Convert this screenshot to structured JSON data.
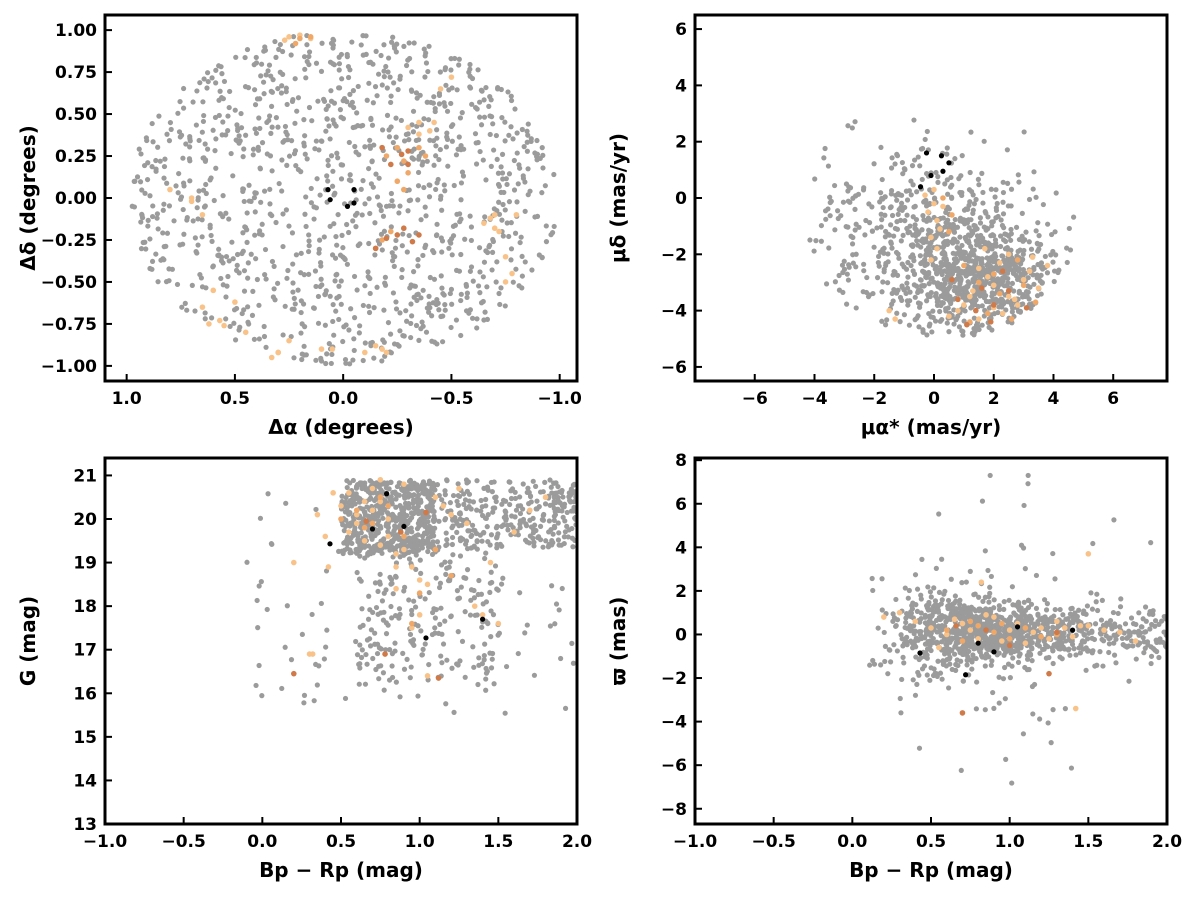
{
  "colors": {
    "field": "#9b9b9b",
    "member_light": "#f8c288",
    "member_mid": "#f0a868",
    "member_dark": "#cf7a48",
    "center": "#000000"
  },
  "chart_data": [
    {
      "type": "scatter",
      "id": "sky",
      "xlabel": "Δα (degrees)",
      "ylabel": "Δδ (degrees)",
      "xlim": [
        1.1,
        -1.08
      ],
      "ylim": [
        -1.09,
        1.09
      ],
      "x_inverted": true,
      "xticks": [
        1.0,
        0.5,
        0.0,
        -0.5,
        -1.0
      ],
      "xtick_labels": [
        "1.0",
        "0.5",
        "0.0",
        "−0.5",
        "−1.0"
      ],
      "yticks": [
        1.0,
        0.75,
        0.5,
        0.25,
        0.0,
        -0.25,
        -0.5,
        -0.75,
        -1.0
      ],
      "ytick_labels": [
        "1.00",
        "0.75",
        "0.50",
        "0.25",
        "0.00",
        "−0.25",
        "−0.50",
        "−0.75",
        "−1.00"
      ],
      "grid": false,
      "field_cloud": {
        "shape": "disk",
        "center": [
          0,
          0
        ],
        "radius": 0.99,
        "n": 1150
      },
      "series": [
        {
          "group": "center",
          "x": [
            -0.05,
            -0.05,
            -0.02,
            0.07,
            0.06
          ],
          "y": [
            0.05,
            -0.03,
            -0.05,
            0.05,
            -0.01
          ]
        },
        {
          "group": "member_light",
          "x": [
            0.2,
            0.25,
            0.27,
            0.5,
            0.55,
            0.57,
            0.6,
            0.65,
            0.8,
            -0.7,
            -0.72,
            -0.75,
            -0.78,
            -0.75,
            -0.8,
            -0.65,
            -0.5,
            -0.45,
            -0.35,
            -0.3,
            -0.2,
            -0.15,
            -0.1,
            0.05,
            0.1,
            0.15,
            0.25,
            0.3,
            -0.35,
            -0.4,
            -0.42,
            -0.68,
            -0.7,
            0.7,
            0.7,
            0.65,
            0.3,
            0.33,
            0.45,
            0.62,
            -0.18
          ],
          "y": [
            0.97,
            0.96,
            0.94,
            -0.62,
            -0.76,
            -0.73,
            -0.55,
            -0.65,
            0.05,
            -0.1,
            -0.2,
            -0.35,
            -0.45,
            -0.5,
            -0.1,
            -0.15,
            0.72,
            0.65,
            0.38,
            0.42,
            -0.92,
            -0.88,
            -0.92,
            -0.9,
            -0.9,
            0.95,
            -0.85,
            -0.92,
            0.45,
            0.4,
            0.45,
            -0.12,
            -0.18,
            -0.02,
            -0.0,
            -0.1,
            -0.92,
            -0.95,
            -0.8,
            -0.75,
            -0.9
          ]
        },
        {
          "group": "member_mid",
          "x": [
            -0.2,
            -0.25,
            -0.28,
            -0.3,
            -0.22,
            -0.18,
            -0.15,
            -0.35,
            -0.38,
            -0.25,
            -0.28,
            0.15,
            0.2,
            0.22
          ],
          "y": [
            0.25,
            0.3,
            0.22,
            0.15,
            -0.2,
            -0.25,
            -0.3,
            0.3,
            0.25,
            0.1,
            0.05,
            0.96,
            0.95,
            0.92
          ]
        },
        {
          "group": "member_dark",
          "x": [
            -0.18,
            -0.22,
            -0.27,
            -0.3,
            -0.2,
            -0.25,
            -0.28,
            -0.15,
            -0.3,
            -0.32,
            -0.35
          ],
          "y": [
            0.3,
            0.2,
            0.26,
            0.28,
            -0.24,
            -0.22,
            -0.18,
            -0.3,
            0.2,
            -0.26,
            -0.22
          ]
        }
      ]
    },
    {
      "type": "scatter",
      "id": "pm",
      "xlabel": "μα* (mas/yr)",
      "ylabel": "μδ (mas/yr)",
      "xlim": [
        -8,
        7.8
      ],
      "ylim": [
        -6.5,
        6.5
      ],
      "xticks": [
        -6,
        -4,
        -2,
        0,
        2,
        4,
        6
      ],
      "xtick_labels": [
        "−6",
        "−4",
        "−2",
        "0",
        "2",
        "4",
        "6"
      ],
      "yticks": [
        -6,
        -4,
        -2,
        0,
        2,
        4,
        6
      ],
      "ytick_labels": [
        "−6",
        "−4",
        "−2",
        "0",
        "2",
        "4",
        "6"
      ],
      "grid": false,
      "field_cloud": {
        "shape": "pm_blob",
        "center": [
          1.5,
          -2.5
        ],
        "n": 1150
      },
      "series": [
        {
          "group": "center",
          "x": [
            -0.25,
            0.25,
            0.5,
            -0.1,
            0.3,
            -0.45
          ],
          "y": [
            1.6,
            1.5,
            1.25,
            0.8,
            0.95,
            0.4
          ]
        },
        {
          "group": "member_light",
          "x": [
            0.0,
            -0.2,
            0.1,
            0.2,
            -0.1,
            0.0,
            -0.3,
            0.3,
            0.1,
            -0.1,
            1.5,
            1.8,
            2.0,
            2.2,
            2.5,
            2.8,
            3.0,
            3.2,
            3.5,
            3.8,
            1.2,
            1.0,
            0.8,
            0.5,
            1.5,
            2.0,
            2.5,
            1.7,
            2.3,
            1.3,
            2.7,
            3.3,
            -1.5,
            -1.3
          ],
          "y": [
            -0.2,
            -0.5,
            -0.8,
            -1.1,
            -1.4,
            0.3,
            0.1,
            -0.3,
            -1.8,
            -2.2,
            -2.5,
            -2.8,
            -3.1,
            -2.3,
            -3.5,
            -3.8,
            -2.9,
            -2.6,
            -3.2,
            -2.4,
            -3.5,
            -3.8,
            -4.0,
            -4.2,
            -4.3,
            -3.9,
            -2.0,
            -1.8,
            -4.1,
            -3.3,
            -3.6,
            -2.1,
            -4.0,
            -4.3
          ]
        },
        {
          "group": "member_mid",
          "x": [
            0.5,
            1.0,
            1.5,
            1.8,
            2.2,
            2.6,
            3.0,
            3.4,
            1.2,
            2.0,
            0.3,
            0.6,
            2.8
          ],
          "y": [
            -1.2,
            -2.4,
            -3.0,
            -4.1,
            -3.4,
            -4.3,
            -3.1,
            -3.7,
            -4.4,
            -2.7,
            0.0,
            -0.6,
            -2.2
          ]
        },
        {
          "group": "member_dark",
          "x": [
            0.8,
            1.4,
            2.0,
            2.5,
            1.1,
            1.9,
            0.6,
            2.3,
            3.1,
            1.6
          ],
          "y": [
            -3.6,
            -4.0,
            -3.8,
            -3.3,
            -4.5,
            -4.4,
            -2.9,
            -2.6,
            -3.9,
            -3.2
          ]
        }
      ]
    },
    {
      "type": "scatter",
      "id": "cmd",
      "xlabel": "Bp − Rp (mag)",
      "ylabel": "G (mag)",
      "xlim": [
        -1.0,
        2.0
      ],
      "ylim": [
        13.0,
        21.4
      ],
      "y_inverted": false,
      "xticks": [
        -1.0,
        -0.5,
        0.0,
        0.5,
        1.0,
        1.5,
        2.0
      ],
      "xtick_labels": [
        "−1.0",
        "−0.5",
        "0.0",
        "0.5",
        "1.0",
        "1.5",
        "2.0"
      ],
      "yticks": [
        13,
        14,
        15,
        16,
        17,
        18,
        19,
        20,
        21
      ],
      "ytick_labels": [
        "13",
        "14",
        "15",
        "16",
        "17",
        "18",
        "19",
        "20",
        "21"
      ],
      "grid": false,
      "field_cloud": {
        "shape": "cmd",
        "n": 1150
      },
      "series": [
        {
          "group": "center",
          "x": [
            0.79,
            0.9,
            0.7,
            0.43,
            1.04,
            1.4
          ],
          "y": [
            20.58,
            19.83,
            19.77,
            19.43,
            17.27,
            17.7
          ]
        },
        {
          "group": "member_light",
          "x": [
            0.2,
            0.3,
            0.42,
            0.5,
            0.55,
            0.6,
            0.65,
            0.7,
            0.75,
            0.8,
            0.85,
            0.9,
            0.95,
            1.0,
            1.05,
            1.1,
            1.2,
            1.3,
            1.4,
            1.5,
            1.6,
            1.7,
            1.8,
            0.45,
            0.55,
            0.65,
            0.75,
            0.85,
            0.95,
            1.05,
            1.15,
            0.6,
            0.7,
            0.8,
            0.9,
            1.0,
            1.25,
            1.35,
            1.45,
            0.35,
            0.4,
            0.75,
            0.85,
            0.32
          ],
          "y": [
            19.0,
            16.9,
            18.9,
            20.3,
            20.6,
            20.1,
            19.5,
            20.7,
            20.9,
            19.6,
            19.2,
            20.8,
            18.9,
            17.8,
            18.5,
            20.5,
            20.1,
            19.9,
            17.8,
            17.6,
            19.7,
            20.2,
            20.5,
            20.6,
            19.7,
            20.4,
            19.4,
            18.4,
            17.5,
            16.4,
            20.3,
            19.9,
            20.2,
            20.0,
            19.3,
            18.6,
            20.7,
            18.0,
            19.0,
            20.1,
            19.6,
            20.4,
            18.9,
            16.9
          ]
        },
        {
          "group": "member_mid",
          "x": [
            0.6,
            0.7,
            0.8,
            0.9,
            1.0,
            1.1,
            0.65,
            0.75,
            1.2,
            0.5,
            0.95
          ],
          "y": [
            20.2,
            19.9,
            20.3,
            19.6,
            18.3,
            19.3,
            19.8,
            20.5,
            18.7,
            20.0,
            17.6
          ]
        },
        {
          "group": "member_dark",
          "x": [
            0.2,
            0.78,
            0.66,
            1.04,
            1.12,
            0.88
          ],
          "y": [
            16.45,
            16.9,
            19.95,
            20.15,
            16.35,
            19.7
          ]
        }
      ]
    },
    {
      "type": "scatter",
      "id": "parallax",
      "xlabel": "Bp − Rp (mag)",
      "ylabel": "ϖ (mas)",
      "xlim": [
        -1.0,
        2.0
      ],
      "ylim": [
        -8.7,
        8.1
      ],
      "xticks": [
        -1.0,
        -0.5,
        0.0,
        0.5,
        1.0,
        1.5,
        2.0
      ],
      "xtick_labels": [
        "−1.0",
        "−0.5",
        "0.0",
        "0.5",
        "1.0",
        "1.5",
        "2.0"
      ],
      "yticks": [
        -8,
        -6,
        -4,
        -2,
        0,
        2,
        4,
        6,
        8
      ],
      "ytick_labels": [
        "−8",
        "−6",
        "−4",
        "−2",
        "0",
        "2",
        "4",
        "6",
        "8"
      ],
      "grid": false,
      "field_cloud": {
        "shape": "plx",
        "n": 1150
      },
      "series": [
        {
          "group": "center",
          "x": [
            0.43,
            0.72,
            0.8,
            0.9,
            1.05,
            1.4
          ],
          "y": [
            -0.85,
            -1.85,
            -0.4,
            -0.8,
            0.35,
            0.2
          ]
        },
        {
          "group": "member_light",
          "x": [
            0.5,
            0.6,
            0.7,
            0.8,
            0.9,
            1.0,
            1.1,
            1.2,
            1.3,
            1.4,
            1.5,
            1.6,
            1.7,
            1.8,
            0.55,
            0.65,
            0.75,
            0.85,
            0.95,
            1.05,
            1.15,
            1.25,
            1.35,
            1.45,
            0.3,
            0.4,
            0.2,
            1.5,
            1.42,
            0.82
          ],
          "y": [
            0.3,
            0.0,
            0.5,
            -0.2,
            0.8,
            0.2,
            -0.4,
            0.3,
            0.6,
            -0.1,
            0.4,
            0.2,
            0.1,
            -0.3,
            -0.6,
            0.7,
            0.2,
            0.9,
            -0.3,
            0.5,
            0.1,
            -0.2,
            0.3,
            0.4,
            1.0,
            0.6,
            0.8,
            3.7,
            -3.4,
            2.4
          ]
        },
        {
          "group": "member_mid",
          "x": [
            0.6,
            0.7,
            0.8,
            0.9,
            1.0,
            1.1,
            1.2,
            0.75,
            0.95,
            1.3
          ],
          "y": [
            0.2,
            -0.3,
            0.4,
            0.1,
            -0.2,
            0.3,
            -0.1,
            0.6,
            0.5,
            0.0
          ]
        },
        {
          "group": "member_dark",
          "x": [
            0.7,
            1.3,
            1.0,
            0.85,
            0.66,
            1.25
          ],
          "y": [
            -3.6,
            0.1,
            -0.5,
            0.2,
            0.4,
            -1.8
          ]
        }
      ]
    }
  ]
}
